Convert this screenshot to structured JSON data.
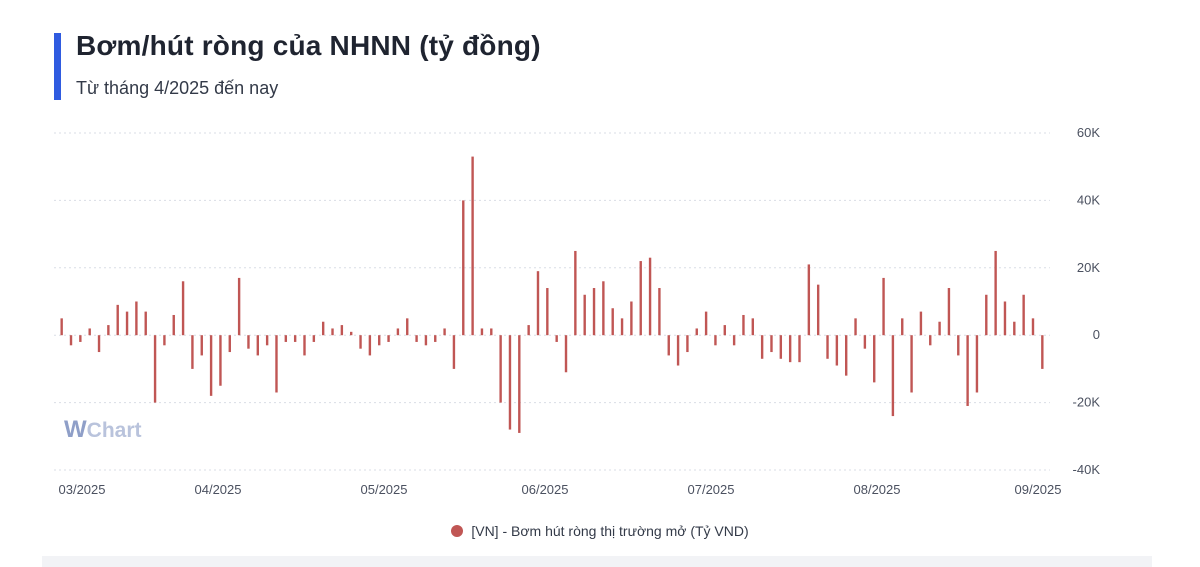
{
  "header": {
    "title": "Bơm/hút ròng của NHNN (tỷ đồng)",
    "subtitle": "Từ tháng 4/2025 đến nay",
    "accent_color": "#2f5be0"
  },
  "watermark": {
    "w": "W",
    "text": "Chart"
  },
  "legend": {
    "label": "[VN] - Bơm hút ròng thị trường mở (Tỷ VND)"
  },
  "chart_data": {
    "type": "bar",
    "title": "Bơm/hút ròng của NHNN (tỷ đồng)",
    "subtitle": "Từ tháng 4/2025 đến nay",
    "series": [
      {
        "name": "[VN] - Bơm hút ròng thị trường mở (Tỷ VND)",
        "color": "#c05654",
        "values": [
          5000,
          -3000,
          -2000,
          2000,
          -5000,
          3000,
          9000,
          7000,
          10000,
          7000,
          -20000,
          -3000,
          6000,
          16000,
          -10000,
          -6000,
          -18000,
          -15000,
          -5000,
          17000,
          -4000,
          -6000,
          -3000,
          -17000,
          -2000,
          -2000,
          -6000,
          -2000,
          4000,
          2000,
          3000,
          1000,
          -4000,
          -6000,
          -3000,
          -2000,
          2000,
          5000,
          -2000,
          -3000,
          -2000,
          2000,
          -10000,
          40000,
          53000,
          2000,
          2000,
          -20000,
          -28000,
          -29000,
          3000,
          19000,
          14000,
          -2000,
          -11000,
          25000,
          12000,
          14000,
          16000,
          8000,
          5000,
          10000,
          22000,
          23000,
          14000,
          -6000,
          -9000,
          -5000,
          2000,
          7000,
          -3000,
          3000,
          -3000,
          6000,
          5000,
          -7000,
          -5000,
          -7000,
          -8000,
          -8000,
          21000,
          15000,
          -7000,
          -9000,
          -12000,
          5000,
          -4000,
          -14000,
          17000,
          -24000,
          5000,
          -17000,
          7000,
          -3000,
          4000,
          14000,
          -6000,
          -21000,
          -17000,
          12000,
          25000,
          10000,
          4000,
          12000,
          5000,
          -10000
        ]
      }
    ],
    "x_ticks": [
      "03/2025",
      "04/2025",
      "05/2025",
      "06/2025",
      "07/2025",
      "08/2025",
      "09/2025"
    ],
    "y_ticks": [
      "60K",
      "40K",
      "20K",
      "0",
      "-20K",
      "-40K"
    ],
    "ylim": [
      -40000,
      60000
    ],
    "grid": true,
    "legend_position": "bottom"
  }
}
